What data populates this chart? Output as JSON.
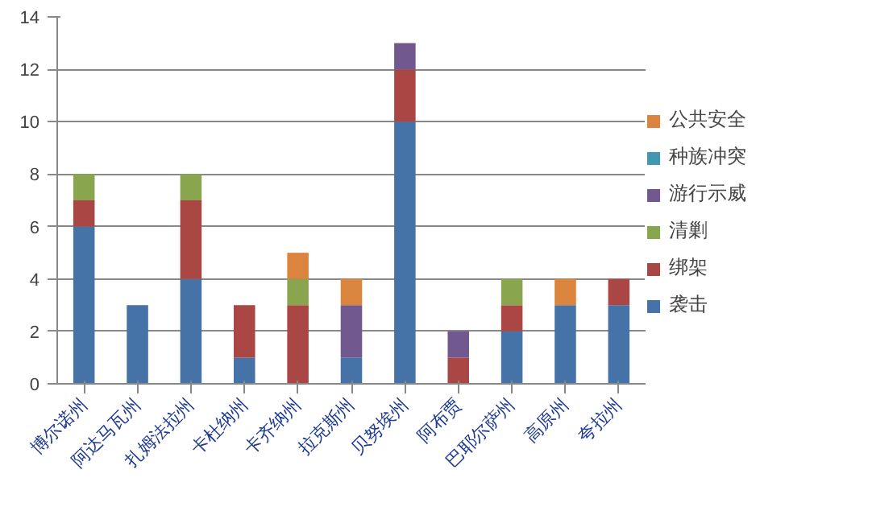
{
  "chart_data": {
    "type": "bar",
    "stacked": true,
    "categories": [
      "博尔诺州",
      "阿达马瓦州",
      "扎姆法拉州",
      "卡杜纳州",
      "卡齐纳州",
      "拉克斯州",
      "贝努埃州",
      "阿布贾",
      "巴耶尔萨州",
      "高原州",
      "夸拉州"
    ],
    "series": [
      {
        "name": "袭击",
        "color": "#4572a7",
        "values": [
          6,
          3,
          4,
          1,
          0,
          1,
          10,
          0,
          2,
          3,
          3
        ]
      },
      {
        "name": "绑架",
        "color": "#aa4643",
        "values": [
          1,
          0,
          3,
          2,
          3,
          0,
          2,
          1,
          1,
          0,
          1
        ]
      },
      {
        "name": "清剿",
        "color": "#89a54e",
        "values": [
          1,
          0,
          1,
          0,
          1,
          0,
          0,
          0,
          1,
          0,
          0
        ]
      },
      {
        "name": "游行示威",
        "color": "#71588f",
        "values": [
          0,
          0,
          0,
          0,
          0,
          2,
          1,
          1,
          0,
          0,
          0
        ]
      },
      {
        "name": "种族冲突",
        "color": "#4198af",
        "values": [
          0,
          0,
          0,
          0,
          0,
          0,
          0,
          0,
          0,
          0,
          0
        ]
      },
      {
        "name": "公共安全",
        "color": "#db843d",
        "values": [
          0,
          0,
          0,
          0,
          1,
          1,
          0,
          0,
          0,
          1,
          0
        ]
      }
    ],
    "ylim": [
      0,
      14
    ],
    "yticks": [
      0,
      2,
      4,
      6,
      8,
      10,
      12,
      14
    ],
    "grid": "y",
    "legend": "right"
  }
}
